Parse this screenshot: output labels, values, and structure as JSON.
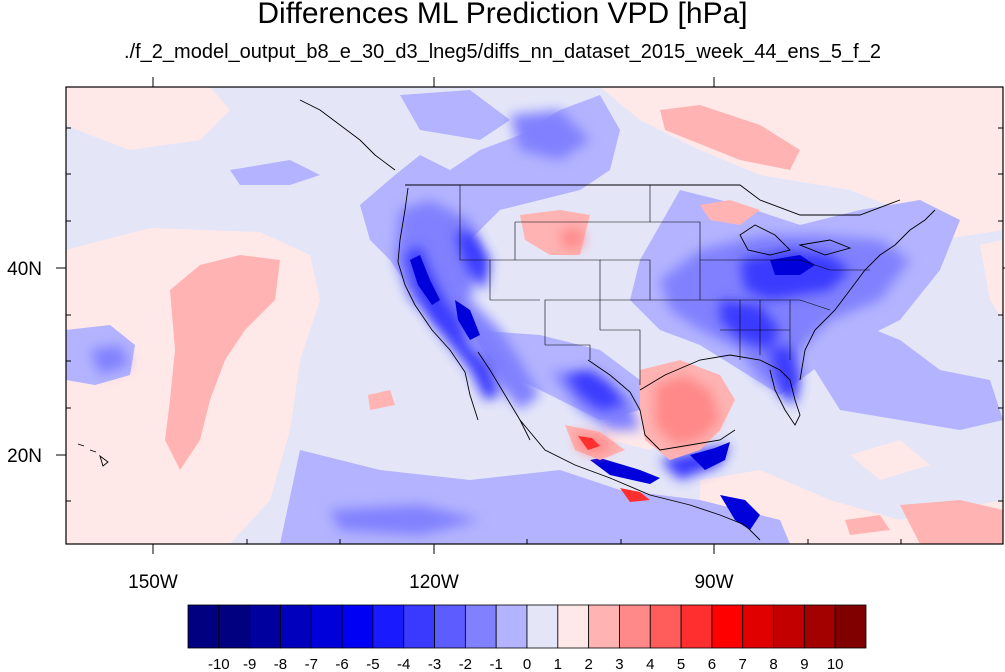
{
  "title": "Differences ML Prediction VPD [hPa]",
  "subtitle": "./f_2_model_output_b8_e_30_d3_lneg5/diffs_nn_dataset_2015_week_44_ens_5_f_2",
  "map": {
    "lat_labels": [
      {
        "label": "40N",
        "lat": 40
      },
      {
        "label": "20N",
        "lat": 20
      }
    ],
    "lon_labels": [
      {
        "label": "150W",
        "lon": -150
      },
      {
        "label": "120W",
        "lon": -120
      },
      {
        "label": "90W",
        "lon": -90
      }
    ],
    "extent": {
      "lon": [
        -159.5,
        -60
      ],
      "lat": [
        11,
        59
      ]
    }
  },
  "colorbar": {
    "levels": [
      "-10",
      "-9",
      "-8",
      "-7",
      "-6",
      "-5",
      "-4",
      "-3",
      "-2",
      "-1",
      "0",
      "1",
      "2",
      "3",
      "4",
      "5",
      "6",
      "7",
      "8",
      "9",
      "10"
    ],
    "colors": [
      "#000080",
      "#00009e",
      "#0000bd",
      "#0000db",
      "#0000f5",
      "#1a1aff",
      "#3a3aff",
      "#5c5cff",
      "#8181ff",
      "#b3b3ff",
      "#e4e6f8",
      "#ffe8e8",
      "#ffb3b3",
      "#ff8888",
      "#ff5c5c",
      "#ff2f2f",
      "#ff0000",
      "#e00000",
      "#c20000",
      "#a30000",
      "#800000"
    ]
  }
}
